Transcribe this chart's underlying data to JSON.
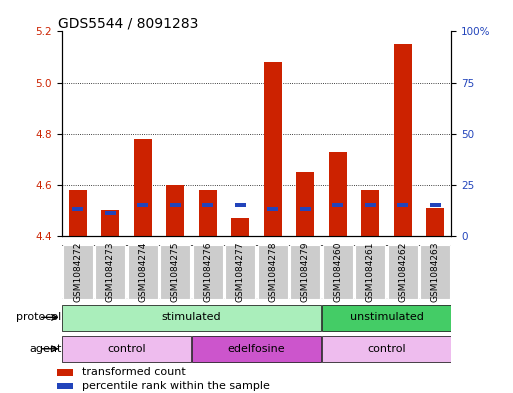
{
  "title": "GDS5544 / 8091283",
  "samples": [
    "GSM1084272",
    "GSM1084273",
    "GSM1084274",
    "GSM1084275",
    "GSM1084276",
    "GSM1084277",
    "GSM1084278",
    "GSM1084279",
    "GSM1084260",
    "GSM1084261",
    "GSM1084262",
    "GSM1084263"
  ],
  "red_values": [
    4.58,
    4.5,
    4.78,
    4.6,
    4.58,
    4.47,
    5.08,
    4.65,
    4.73,
    4.58,
    5.15,
    4.51
  ],
  "blue_percentiles": [
    12,
    10,
    14,
    14,
    14,
    14,
    12,
    12,
    14,
    14,
    14,
    14
  ],
  "ylim_left": [
    4.4,
    5.2
  ],
  "ylim_right": [
    0,
    100
  ],
  "yticks_left": [
    4.4,
    4.6,
    4.8,
    5.0,
    5.2
  ],
  "yticks_right": [
    0,
    25,
    50,
    75,
    100
  ],
  "ytick_labels_right": [
    "0",
    "25",
    "50",
    "75",
    "100%"
  ],
  "base_value": 4.4,
  "bar_width": 0.55,
  "red_color": "#cc2200",
  "blue_color": "#2244bb",
  "protocol_groups": [
    {
      "label": "stimulated",
      "start": 0,
      "end": 7,
      "color": "#aaeebb"
    },
    {
      "label": "unstimulated",
      "start": 8,
      "end": 11,
      "color": "#44cc66"
    }
  ],
  "agent_groups": [
    {
      "label": "control",
      "start": 0,
      "end": 3,
      "color": "#eebcee"
    },
    {
      "label": "edelfosine",
      "start": 4,
      "end": 7,
      "color": "#cc55cc"
    },
    {
      "label": "control",
      "start": 8,
      "end": 11,
      "color": "#eebcee"
    }
  ],
  "legend_items": [
    {
      "color": "#cc2200",
      "label": "transformed count"
    },
    {
      "color": "#2244bb",
      "label": "percentile rank within the sample"
    }
  ],
  "grid_lines": [
    4.6,
    4.8,
    5.0
  ],
  "label_box_color": "#cccccc",
  "tick_fontsize": 7.5,
  "title_fontsize": 10
}
